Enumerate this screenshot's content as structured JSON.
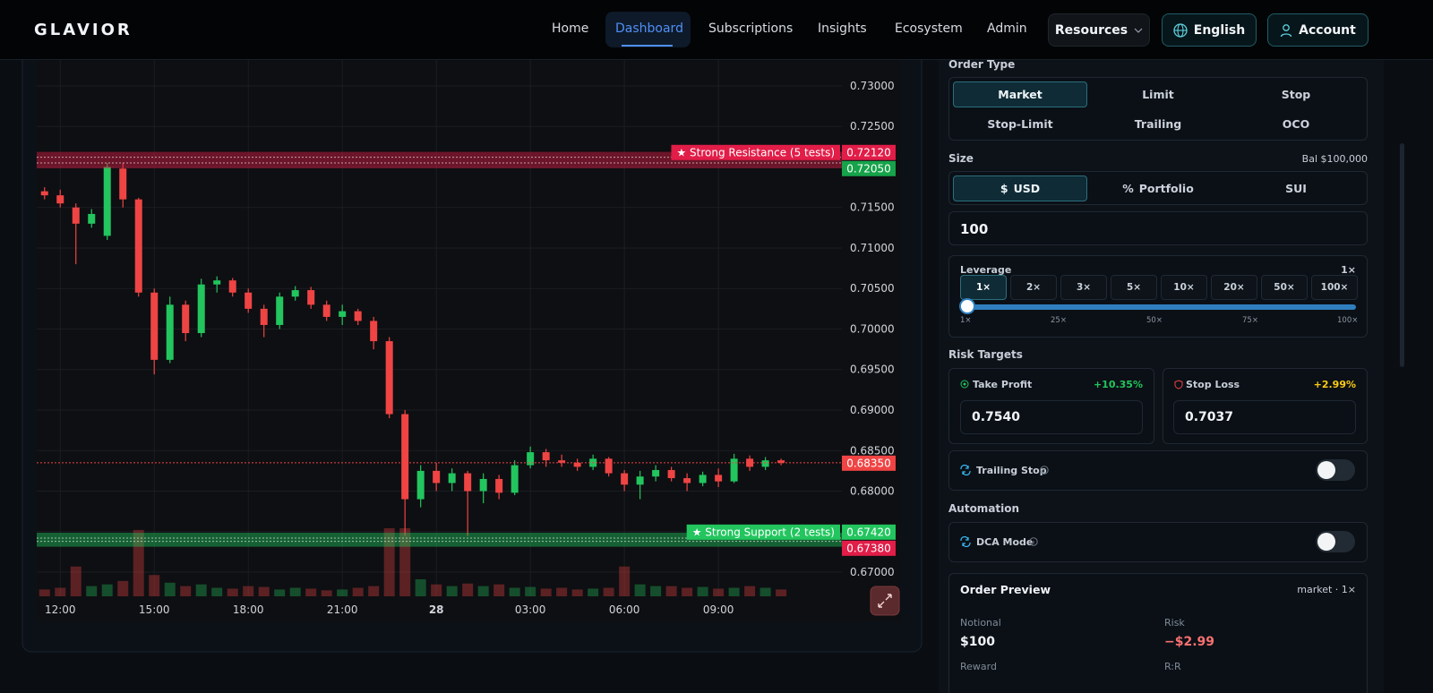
{
  "nav": {
    "brand": "GLAVIOR",
    "links": [
      "Home",
      "Dashboard",
      "Subscriptions",
      "Insights",
      "Ecosystem",
      "Admin"
    ],
    "resources": "Resources",
    "language": "English",
    "account": "Account"
  },
  "chart_data": {
    "type": "candlestick",
    "x": [
      -0.5,
      0,
      0.5,
      1,
      1.5,
      2,
      2.5,
      3,
      3.5,
      4,
      4.5,
      5,
      5.5,
      6,
      6.5,
      7,
      7.5,
      8,
      8.5,
      9,
      9.5,
      10,
      10.5,
      11,
      11.5,
      12,
      12.5,
      13,
      13.5,
      14,
      14.5,
      15,
      15.5,
      16,
      16.5,
      17,
      17.5,
      18,
      18.5,
      19,
      19.5,
      20,
      20.5,
      21,
      21.5,
      22,
      22.5,
      23
    ],
    "open": [
      0.717,
      0.7165,
      0.715,
      0.713,
      0.7115,
      0.7198,
      0.716,
      0.7045,
      0.6962,
      0.703,
      0.6995,
      0.7055,
      0.706,
      0.7045,
      0.7025,
      0.7005,
      0.704,
      0.7048,
      0.703,
      0.7015,
      0.7022,
      0.701,
      0.6985,
      0.6895,
      0.679,
      0.6825,
      0.681,
      0.6822,
      0.68,
      0.6815,
      0.6798,
      0.6832,
      0.6848,
      0.6838,
      0.6835,
      0.683,
      0.684,
      0.6822,
      0.6808,
      0.6818,
      0.6826,
      0.6816,
      0.681,
      0.682,
      0.6812,
      0.684,
      0.683,
      0.6838
    ],
    "high": [
      0.7175,
      0.7172,
      0.7155,
      0.7148,
      0.7205,
      0.7205,
      0.7162,
      0.705,
      0.704,
      0.7035,
      0.7062,
      0.7065,
      0.7063,
      0.705,
      0.703,
      0.7045,
      0.7053,
      0.7052,
      0.7035,
      0.703,
      0.7025,
      0.7015,
      0.699,
      0.69,
      0.6832,
      0.6835,
      0.6828,
      0.6825,
      0.6822,
      0.682,
      0.6838,
      0.6855,
      0.6852,
      0.6845,
      0.684,
      0.6845,
      0.6842,
      0.6826,
      0.6825,
      0.6832,
      0.683,
      0.6822,
      0.6824,
      0.6828,
      0.6846,
      0.6844,
      0.6842,
      0.684
    ],
    "low": [
      0.716,
      0.715,
      0.708,
      0.7125,
      0.711,
      0.715,
      0.704,
      0.6944,
      0.6958,
      0.6985,
      0.699,
      0.7045,
      0.704,
      0.702,
      0.699,
      0.7,
      0.7035,
      0.7025,
      0.701,
      0.7005,
      0.7005,
      0.6975,
      0.689,
      0.6745,
      0.678,
      0.68,
      0.68,
      0.6745,
      0.6785,
      0.679,
      0.6795,
      0.6828,
      0.683,
      0.683,
      0.6825,
      0.6826,
      0.6818,
      0.68,
      0.679,
      0.6812,
      0.6812,
      0.68,
      0.6806,
      0.6805,
      0.681,
      0.6825,
      0.6826,
      0.6832
    ],
    "close": [
      0.7165,
      0.7155,
      0.713,
      0.7142,
      0.72,
      0.716,
      0.7045,
      0.6962,
      0.703,
      0.6995,
      0.7055,
      0.706,
      0.7045,
      0.7025,
      0.7005,
      0.704,
      0.7048,
      0.703,
      0.7015,
      0.7022,
      0.701,
      0.6985,
      0.6895,
      0.679,
      0.6825,
      0.681,
      0.6822,
      0.68,
      0.6815,
      0.6798,
      0.6832,
      0.6848,
      0.6838,
      0.6835,
      0.683,
      0.684,
      0.6822,
      0.6808,
      0.6818,
      0.6826,
      0.6816,
      0.681,
      0.682,
      0.6812,
      0.684,
      0.683,
      0.6838,
      0.6835
    ],
    "volume": [
      8,
      10,
      35,
      12,
      14,
      18,
      78,
      25,
      16,
      12,
      14,
      10,
      9,
      12,
      11,
      8,
      10,
      9,
      7,
      8,
      10,
      12,
      80,
      80,
      20,
      14,
      12,
      15,
      12,
      14,
      10,
      11,
      9,
      10,
      8,
      9,
      10,
      35,
      14,
      12,
      12,
      10,
      11,
      9,
      10,
      12,
      10,
      8
    ],
    "up_color": "#22c55e",
    "down_color": "#ef4444",
    "xlim": [
      -0.75,
      24.94
    ],
    "xticks": [
      {
        "value": 0,
        "label": "12:00"
      },
      {
        "value": 3,
        "label": "15:00"
      },
      {
        "value": 6,
        "label": "18:00"
      },
      {
        "value": 9,
        "label": "21:00"
      },
      {
        "value": 12,
        "label": "28"
      },
      {
        "value": 15,
        "label": "03:00"
      },
      {
        "value": 18,
        "label": "06:00"
      },
      {
        "value": 21,
        "label": "09:00"
      }
    ],
    "ylim": [
      0.66702,
      0.73331
    ],
    "yticks": [
      {
        "value": 0.67,
        "label": "0.67000"
      },
      {
        "value": 0.675,
        "label": "0.67500"
      },
      {
        "value": 0.68,
        "label": "0.68000"
      },
      {
        "value": 0.685,
        "label": "0.68500"
      },
      {
        "value": 0.69,
        "label": "0.69000"
      },
      {
        "value": 0.695,
        "label": "0.69500"
      },
      {
        "value": 0.7,
        "label": "0.70000"
      },
      {
        "value": 0.705,
        "label": "0.70500"
      },
      {
        "value": 0.71,
        "label": "0.71000"
      },
      {
        "value": 0.715,
        "label": "0.71500"
      },
      {
        "value": 0.72,
        "label": "0.72000"
      },
      {
        "value": 0.725,
        "label": "0.72500"
      },
      {
        "value": 0.73,
        "label": "0.73000"
      }
    ],
    "grid": true,
    "levels": [
      {
        "label": "★ Strong Resistance (5 tests)",
        "color": "#e11d48",
        "values": [
          0.7212,
          0.7205
        ],
        "value_labels": [
          "0.72120",
          "0.72050"
        ],
        "tag_colors": [
          "#e11d48",
          "#16a34a"
        ]
      },
      {
        "label": "★ Strong Support (2 tests)",
        "color": "#22c55e",
        "values": [
          0.6742,
          0.6738
        ],
        "value_labels": [
          "0.67420",
          "0.67380"
        ],
        "tag_colors": [
          "#22c55e",
          "#e11d48"
        ]
      }
    ],
    "last_price": {
      "value": 0.6835,
      "label": "0.68350",
      "color": "#ef4444"
    }
  },
  "order_panel": {
    "order_type": {
      "label": "Order Type",
      "options": [
        "Market",
        "Limit",
        "Stop",
        "Stop-Limit",
        "Trailing",
        "OCO"
      ]
    },
    "size": {
      "label": "Size",
      "balance": "Bal $100,000",
      "tabs": [
        {
          "icon": "$",
          "label": "USD"
        },
        {
          "icon": "%",
          "label": "Portfolio"
        },
        {
          "label": "SUI"
        }
      ],
      "amount": "100"
    },
    "leverage": {
      "label": "Leverage",
      "current": "1×",
      "options": [
        "1×",
        "2×",
        "3×",
        "5×",
        "10×",
        "20×",
        "50×",
        "100×"
      ],
      "scale": [
        "1×",
        "25×",
        "50×",
        "75×",
        "100×"
      ]
    },
    "risk": {
      "label": "Risk Targets",
      "take_profit": {
        "label": "Take Profit",
        "percent": "+10.35%",
        "price": "0.7540"
      },
      "stop_loss": {
        "label": "Stop Loss",
        "percent": "+2.99%",
        "price": "0.7037"
      }
    },
    "trailing_stop": "Trailing Stop",
    "automation": "Automation",
    "dca": "DCA Mode",
    "preview": {
      "title": "Order Preview",
      "mode": "market · 1×",
      "notional": {
        "label": "Notional",
        "value": "$100"
      },
      "risk": {
        "label": "Risk",
        "value": "−$2.99"
      },
      "reward": {
        "label": "Reward"
      },
      "rr": {
        "label": "R:R"
      }
    }
  }
}
